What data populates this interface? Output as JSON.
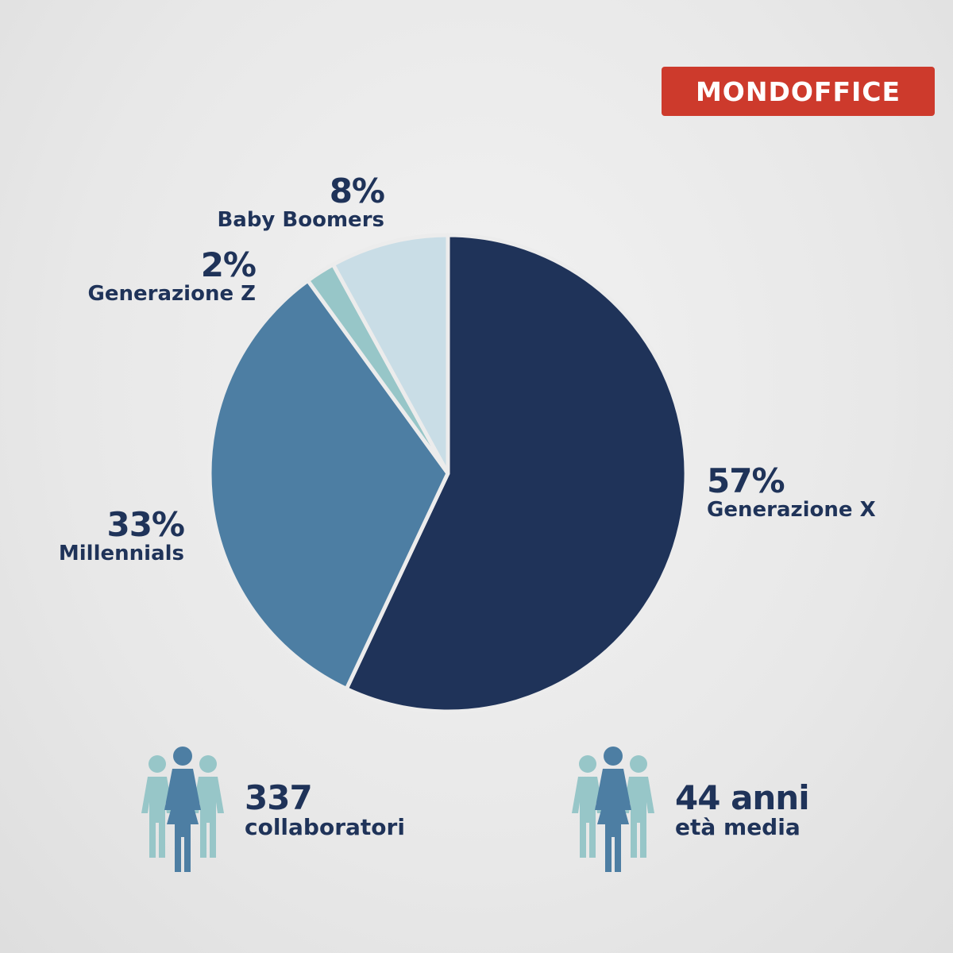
{
  "brand": {
    "logo_text": "mondoffice",
    "logo_color": "#cd3a2c"
  },
  "chart_data": {
    "type": "pie",
    "title": "",
    "slices": [
      {
        "label": "Generazione X",
        "value_label": "57%",
        "value": 57,
        "color": "#1f3359"
      },
      {
        "label": "Millennials",
        "value_label": "33%",
        "value": 33,
        "color": "#4d7ea3"
      },
      {
        "label": "Generazione Z",
        "value_label": "2%",
        "value": 2,
        "color": "#97c6c8"
      },
      {
        "label": "Baby Boomers",
        "value_label": "8%",
        "value": 8,
        "color": "#c9dde6"
      }
    ]
  },
  "stats": {
    "employees": {
      "value": "337",
      "label": "collaboratori",
      "icon": "people-group-icon"
    },
    "age": {
      "value": "44 anni",
      "label": "età media",
      "icon": "people-group-icon"
    }
  },
  "colors": {
    "dark": "#1f3359",
    "medium": "#4d7ea3",
    "light": "#97c6c8",
    "pale": "#c9dde6"
  }
}
